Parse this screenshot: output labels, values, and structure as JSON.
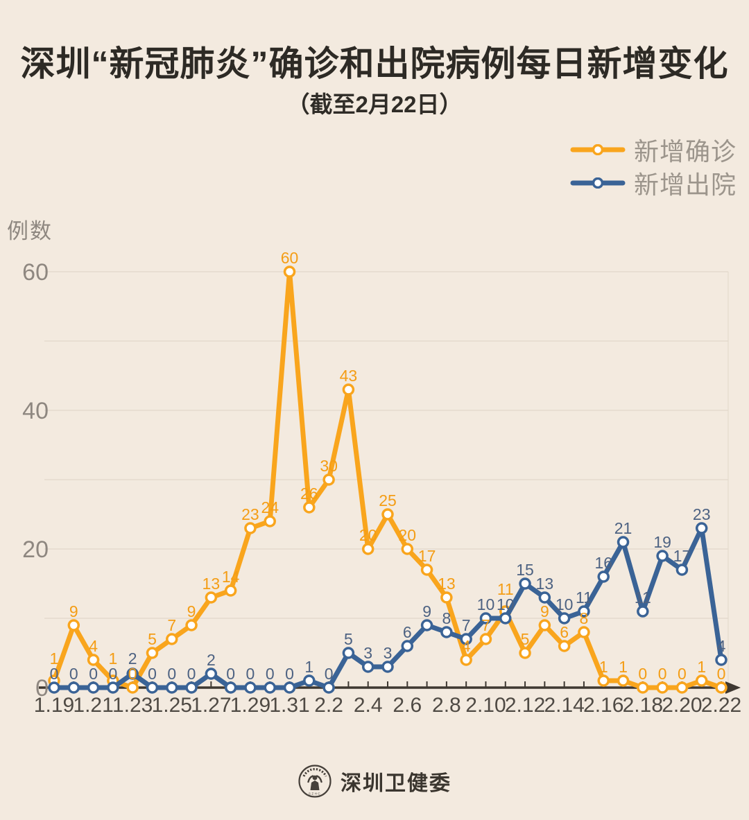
{
  "header": {
    "title": "深圳“新冠肺炎”确诊和出院病例每日新增变化",
    "subtitle": "（截至2月22日）"
  },
  "legend": [
    {
      "label": "新增确诊",
      "color": "#F9A51D"
    },
    {
      "label": "新增出院",
      "color": "#3A6396"
    }
  ],
  "footer": {
    "brand": "深圳卫健委",
    "logo": "shenzhen-health-commission-seal"
  },
  "colors": {
    "background": "#F3EADF",
    "title_text": "#2D2A25",
    "legend_text": "#9C958C",
    "grid_line": "#E2D8CA",
    "axis_line": "#3E3831",
    "x_tick_label": "#4F4A44",
    "y_tick_label": "#8E8780",
    "confirmed_series": "#F9A51D",
    "confirmed_label": "#F49D15",
    "discharged_series": "#3A6396",
    "discharged_label": "#4D6282"
  },
  "chart_data": {
    "type": "line",
    "title": "深圳“新冠肺炎”确诊和出院病例每日新增变化",
    "subtitle": "（截至2月22日）",
    "ylabel": "例数",
    "xlabel": "",
    "ylim": [
      0,
      60
    ],
    "yticks": [
      0,
      20,
      40,
      60
    ],
    "grid": "horizontal, every 10 units, faint",
    "legend_position": "top-right",
    "marker": "white circle with colored ring",
    "x": [
      "1.19",
      "1.20",
      "1.21",
      "1.22",
      "1.23",
      "1.24",
      "1.25",
      "1.26",
      "1.27",
      "1.28",
      "1.29",
      "1.30",
      "1.31",
      "2.1",
      "2.2",
      "2.3",
      "2.4",
      "2.5",
      "2.6",
      "2.7",
      "2.8",
      "2.9",
      "2.10",
      "2.11",
      "2.12",
      "2.13",
      "2.14",
      "2.15",
      "2.16",
      "2.17",
      "2.18",
      "2.19",
      "2.20",
      "2.21",
      "2.22"
    ],
    "x_tick_labels": [
      "1.19",
      "1.21",
      "1.23",
      "1.25",
      "1.27",
      "1.29",
      "1.31",
      "2.2",
      "2.4",
      "2.6",
      "2.8",
      "2.10",
      "2.12",
      "2.14",
      "2.16",
      "2.18",
      "2.20",
      "2.22"
    ],
    "series": [
      {
        "name": "新增确诊",
        "color": "#F9A51D",
        "label_color": "#F49D15",
        "values": [
          1,
          9,
          4,
          1,
          0,
          5,
          7,
          9,
          13,
          14,
          23,
          24,
          60,
          26,
          30,
          43,
          20,
          25,
          20,
          17,
          13,
          4,
          7,
          11,
          5,
          9,
          6,
          8,
          1,
          1,
          0,
          0,
          0,
          1,
          0
        ]
      },
      {
        "name": "新增出院",
        "color": "#3A6396",
        "label_color": "#4D6282",
        "values": [
          0,
          0,
          0,
          0,
          2,
          0,
          0,
          0,
          2,
          0,
          0,
          0,
          0,
          1,
          0,
          5,
          3,
          3,
          6,
          9,
          8,
          7,
          10,
          10,
          15,
          13,
          10,
          11,
          16,
          21,
          11,
          19,
          17,
          23,
          4
        ]
      }
    ]
  }
}
